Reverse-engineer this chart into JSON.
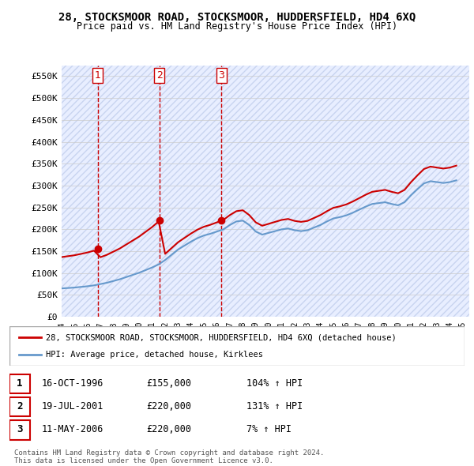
{
  "title": "28, STOCKSMOOR ROAD, STOCKSMOOR, HUDDERSFIELD, HD4 6XQ",
  "subtitle": "Price paid vs. HM Land Registry's House Price Index (HPI)",
  "ylabel_ticks": [
    "£0",
    "£50K",
    "£100K",
    "£150K",
    "£200K",
    "£250K",
    "£300K",
    "£350K",
    "£400K",
    "£450K",
    "£500K",
    "£550K"
  ],
  "ylim": [
    0,
    575000
  ],
  "xlim_start": 1994.0,
  "xlim_end": 2025.5,
  "sale_dates": [
    1996.79,
    2001.55,
    2006.36
  ],
  "sale_prices": [
    155000,
    220000,
    220000
  ],
  "sale_labels": [
    "1",
    "2",
    "3"
  ],
  "sale_color": "#cc0000",
  "hpi_color": "#6699cc",
  "hpi_x": [
    1994.0,
    1994.5,
    1995.0,
    1995.5,
    1996.0,
    1996.5,
    1997.0,
    1997.5,
    1998.0,
    1998.5,
    1999.0,
    1999.5,
    2000.0,
    2000.5,
    2001.0,
    2001.5,
    2002.0,
    2002.5,
    2003.0,
    2003.5,
    2004.0,
    2004.5,
    2005.0,
    2005.5,
    2006.0,
    2006.5,
    2007.0,
    2007.5,
    2008.0,
    2008.5,
    2009.0,
    2009.5,
    2010.0,
    2010.5,
    2011.0,
    2011.5,
    2012.0,
    2012.5,
    2013.0,
    2013.5,
    2014.0,
    2014.5,
    2015.0,
    2015.5,
    2016.0,
    2016.5,
    2017.0,
    2017.5,
    2018.0,
    2018.5,
    2019.0,
    2019.5,
    2020.0,
    2020.5,
    2021.0,
    2021.5,
    2022.0,
    2022.5,
    2023.0,
    2023.5,
    2024.0,
    2024.5
  ],
  "hpi_y": [
    65000,
    66000,
    67000,
    68500,
    70000,
    72000,
    75000,
    78000,
    82000,
    86000,
    91000,
    96000,
    101000,
    107000,
    113000,
    120000,
    130000,
    142000,
    154000,
    163000,
    172000,
    180000,
    186000,
    190000,
    195000,
    200000,
    210000,
    218000,
    220000,
    210000,
    195000,
    188000,
    192000,
    196000,
    200000,
    202000,
    198000,
    196000,
    198000,
    204000,
    210000,
    218000,
    225000,
    228000,
    232000,
    238000,
    245000,
    252000,
    258000,
    260000,
    262000,
    258000,
    255000,
    262000,
    278000,
    292000,
    305000,
    310000,
    308000,
    306000,
    308000,
    312000
  ],
  "legend_line1": "28, STOCKSMOOR ROAD, STOCKSMOOR, HUDDERSFIELD, HD4 6XQ (detached house)",
  "legend_line2": "HPI: Average price, detached house, Kirklees",
  "table_rows": [
    {
      "num": "1",
      "date": "16-OCT-1996",
      "price": "£155,000",
      "hpi": "104% ↑ HPI"
    },
    {
      "num": "2",
      "date": "19-JUL-2001",
      "price": "£220,000",
      "hpi": "131% ↑ HPI"
    },
    {
      "num": "3",
      "date": "11-MAY-2006",
      "price": "£220,000",
      "hpi": "7% ↑ HPI"
    }
  ],
  "footnote1": "Contains HM Land Registry data © Crown copyright and database right 2024.",
  "footnote2": "This data is licensed under the Open Government Licence v3.0.",
  "background_color": "#ffffff",
  "plot_bg_color": "#f0f4ff",
  "grid_color": "#cccccc",
  "hatch_color": "#dde8ff"
}
